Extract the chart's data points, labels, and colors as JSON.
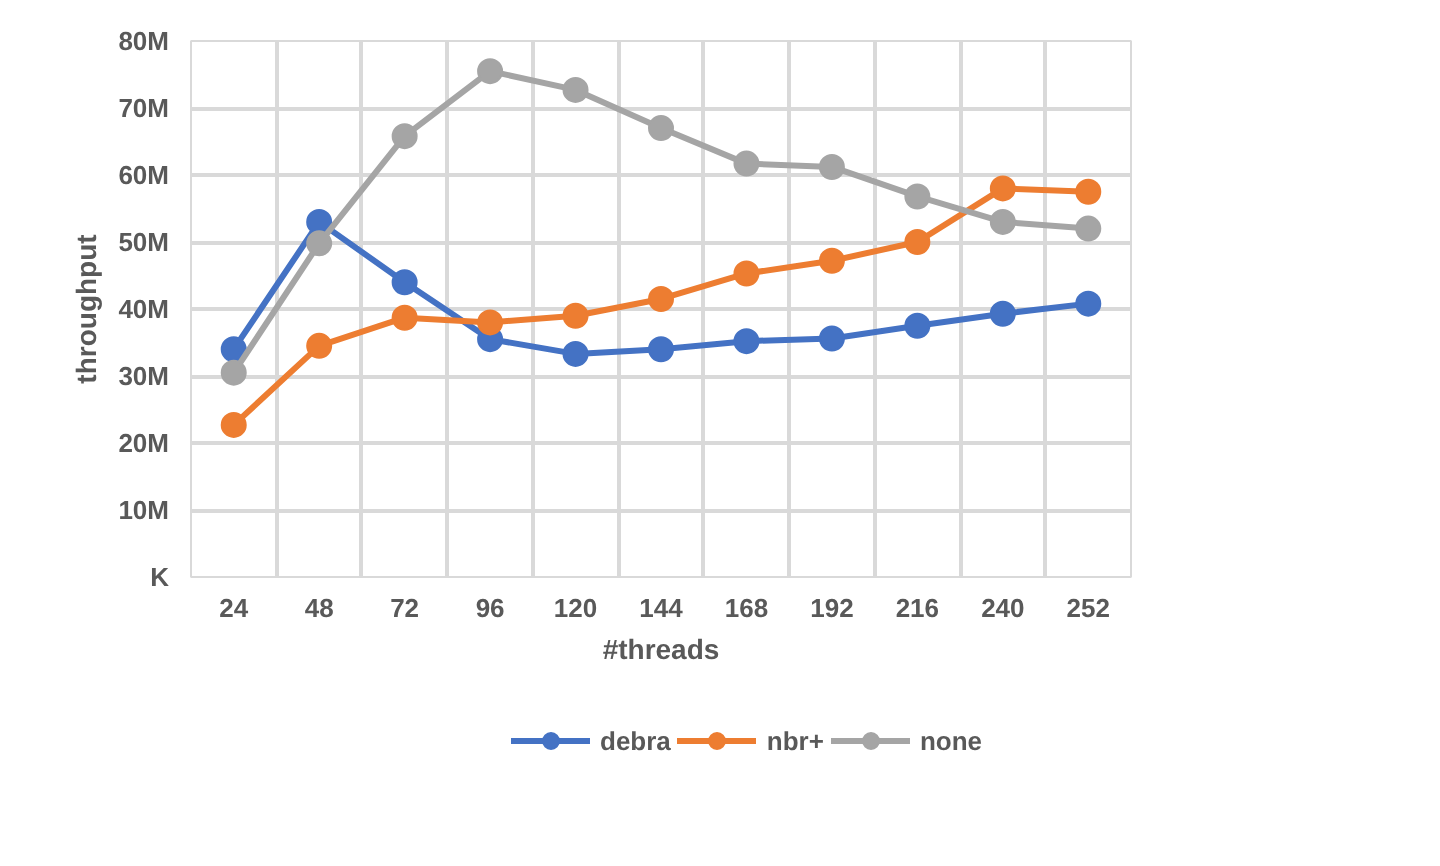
{
  "chart_data": {
    "type": "line",
    "xlabel": "#threads",
    "ylabel": "throughput",
    "categories": [
      "24",
      "48",
      "72",
      "96",
      "120",
      "144",
      "168",
      "192",
      "216",
      "240",
      "252"
    ],
    "series": [
      {
        "name": "debra",
        "color": "#4472c4",
        "values": [
          34,
          53,
          44,
          35.5,
          33.3,
          34,
          35.2,
          35.6,
          37.5,
          39.3,
          40.8
        ]
      },
      {
        "name": "nbr+",
        "color": "#ed7d31",
        "values": [
          22.7,
          34.5,
          38.7,
          38,
          39,
          41.5,
          45.3,
          47.2,
          50,
          58,
          57.5
        ]
      },
      {
        "name": "none",
        "color": "#a5a5a5",
        "values": [
          30.5,
          49.8,
          65.8,
          75.5,
          72.7,
          67,
          61.7,
          61.2,
          56.8,
          53,
          52
        ]
      }
    ],
    "ylim": [
      0,
      80
    ],
    "yticks": [
      {
        "value": 0,
        "label": "K"
      },
      {
        "value": 10,
        "label": "10M"
      },
      {
        "value": 20,
        "label": "20M"
      },
      {
        "value": 30,
        "label": "30M"
      },
      {
        "value": 40,
        "label": "40M"
      },
      {
        "value": 50,
        "label": "50M"
      },
      {
        "value": 60,
        "label": "60M"
      },
      {
        "value": 70,
        "label": "70M"
      },
      {
        "value": 80,
        "label": "80M"
      }
    ],
    "grid": true,
    "legend": "bottom",
    "marker": "circle",
    "line_style": "solid"
  }
}
